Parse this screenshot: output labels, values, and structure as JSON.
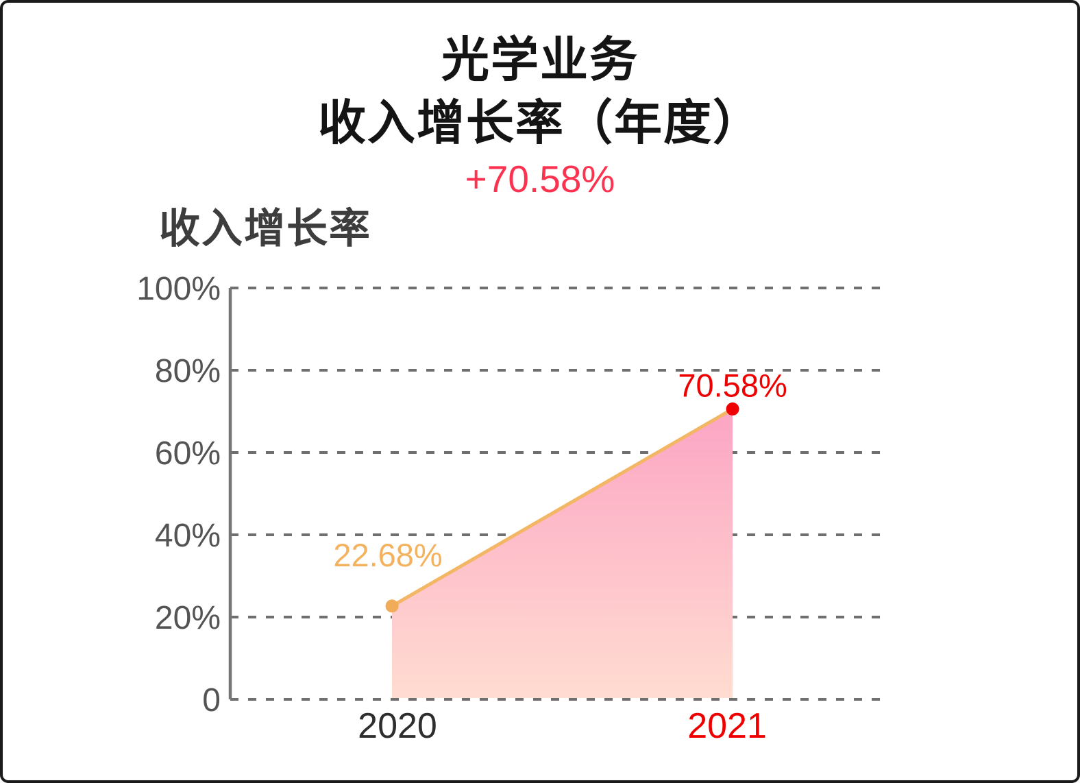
{
  "header": {
    "title_line1": "光学业务",
    "title_line2": "收入增长率（年度）",
    "change_label": "+70.58%"
  },
  "chart_title": "收入增长率",
  "colors": {
    "title_text": "#141414",
    "change_accent": "#FB3350",
    "chart_title_text": "#3D3D3D",
    "tick_text": "#545454",
    "gridline": "#6F6F6F",
    "axis": "#757575",
    "orange_line": "#F3B664",
    "orange_point": "#F0AC58",
    "red_accent": "#EE0000",
    "area_top": "#FCA5C4",
    "area_bottom": "#FFDCD1",
    "x2020_text": "#2E2E2E"
  },
  "chart_data": {
    "type": "area",
    "title": "收入增长率",
    "categories": [
      "2020",
      "2021"
    ],
    "series": [
      {
        "name": "收入增长率",
        "values": [
          22.68,
          70.58
        ]
      }
    ],
    "point_labels": [
      "22.68%",
      "70.58%"
    ],
    "point_label_colors": [
      "#F5B25E",
      "#EE0000"
    ],
    "point_colors": [
      "#F0AC58",
      "#EE0000"
    ],
    "category_label_colors": [
      "#2E2E2E",
      "#EE0000"
    ],
    "y_ticks": [
      {
        "value": 0,
        "label": "0"
      },
      {
        "value": 20,
        "label": "20%"
      },
      {
        "value": 40,
        "label": "40%"
      },
      {
        "value": 60,
        "label": "60%"
      },
      {
        "value": 80,
        "label": "80%"
      },
      {
        "value": 100,
        "label": "100%"
      }
    ],
    "ylim": [
      0,
      100
    ],
    "grid": "horizontal-dashed",
    "legend": "none",
    "xlabel": "",
    "ylabel": "收入增长率"
  }
}
